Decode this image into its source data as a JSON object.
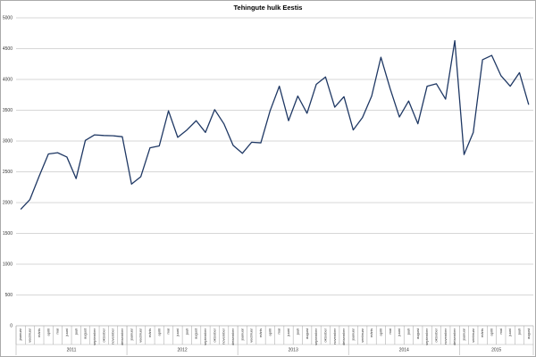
{
  "chart_data": {
    "type": "line",
    "title": "Tehingute hulk Eestis",
    "categories": [
      "jaanuar",
      "veebruar",
      "märts",
      "aprill",
      "mai",
      "juuni",
      "juuli",
      "august",
      "september",
      "oktoober",
      "november",
      "detsember",
      "jaanuar",
      "veebruar",
      "märts",
      "aprill",
      "mai",
      "juuni",
      "juuli",
      "august",
      "september",
      "oktoober",
      "november",
      "detsember",
      "jaanuar",
      "veebruar",
      "märts",
      "aprill",
      "mai",
      "juuni",
      "juuli",
      "august",
      "september",
      "oktoober",
      "november",
      "detsember",
      "jaanuar",
      "veebruar",
      "märts",
      "aprill",
      "mai",
      "juuni",
      "juuli",
      "august",
      "september",
      "oktoober",
      "november",
      "detsember",
      "jaanuar",
      "veebruar",
      "märts",
      "aprill",
      "mai",
      "juuni",
      "juuli",
      "august"
    ],
    "x_groups": [
      {
        "label": "2011",
        "count": 12
      },
      {
        "label": "2012",
        "count": 12
      },
      {
        "label": "2013",
        "count": 12
      },
      {
        "label": "2014",
        "count": 12
      },
      {
        "label": "2015",
        "count": 8
      }
    ],
    "series": [
      {
        "name": "Tehingute hulk",
        "color": "#1f3864",
        "values": [
          1890,
          2050,
          2430,
          2790,
          2810,
          2740,
          2390,
          3010,
          3100,
          3090,
          3085,
          3070,
          2300,
          2420,
          2890,
          2920,
          3490,
          3060,
          3180,
          3330,
          3140,
          3510,
          3280,
          2930,
          2800,
          2980,
          2970,
          3490,
          3890,
          3330,
          3730,
          3450,
          3920,
          4040,
          3550,
          3720,
          3180,
          3380,
          3730,
          4360,
          3850,
          3390,
          3650,
          3280,
          3890,
          3930,
          3680,
          4630,
          2780,
          3140,
          4320,
          4390,
          4060,
          3890,
          4110,
          3590
        ]
      }
    ],
    "ylim": [
      0,
      5000
    ],
    "yticks": [
      0,
      500,
      1000,
      1500,
      2000,
      2500,
      3000,
      3500,
      4000,
      4500,
      5000
    ],
    "grid": true
  }
}
